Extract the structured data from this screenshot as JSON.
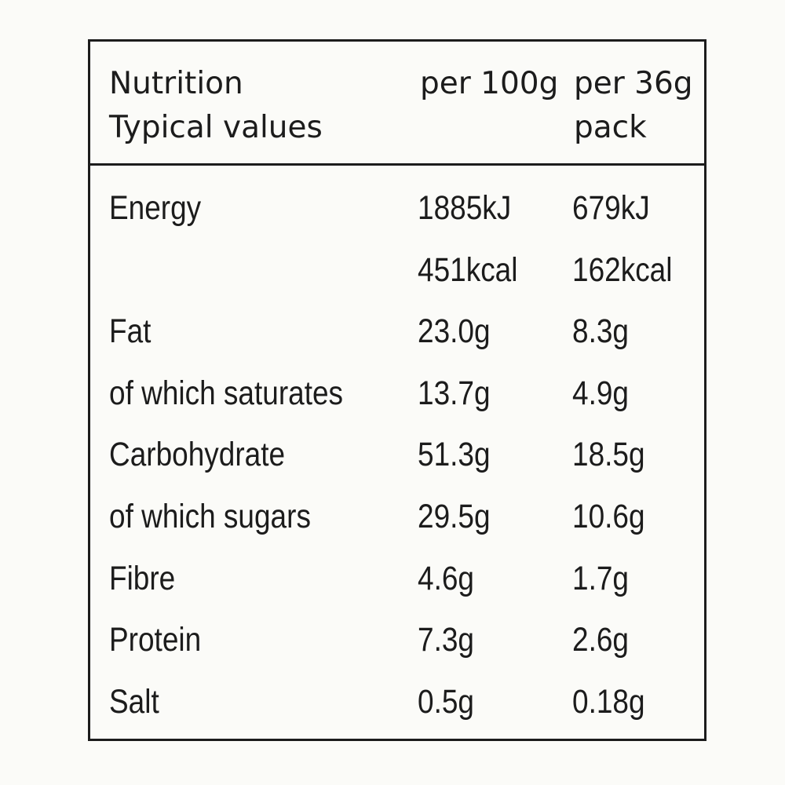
{
  "header": {
    "label_line1": "Nutrition",
    "label_line2": "Typical values",
    "per100_line1": "per 100g",
    "perpack_line1": "per 36g",
    "perpack_line2": "pack"
  },
  "rows": [
    {
      "label": "Energy",
      "per100": "1885kJ",
      "perpack": "679kJ"
    },
    {
      "label": "",
      "per100": "451kcal",
      "perpack": "162kcal"
    },
    {
      "label": "Fat",
      "per100": "23.0g",
      "perpack": "8.3g"
    },
    {
      "label": "of which saturates",
      "per100": "13.7g",
      "perpack": "4.9g"
    },
    {
      "label": "Carbohydrate",
      "per100": "51.3g",
      "perpack": "18.5g"
    },
    {
      "label": "of which sugars",
      "per100": "29.5g",
      "perpack": "10.6g"
    },
    {
      "label": "Fibre",
      "per100": "4.6g",
      "perpack": "1.7g"
    },
    {
      "label": "Protein",
      "per100": "7.3g",
      "perpack": "2.6g"
    },
    {
      "label": "Salt",
      "per100": "0.5g",
      "perpack": "0.18g"
    }
  ]
}
